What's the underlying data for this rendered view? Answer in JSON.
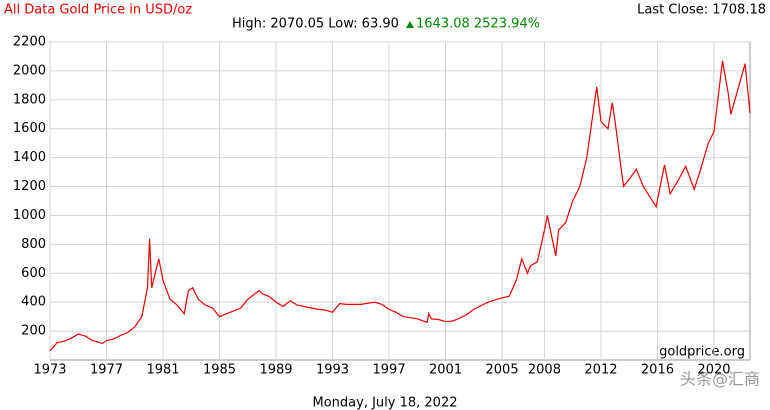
{
  "chart_data": {
    "type": "line",
    "title": "All Data Gold Price in USD/oz",
    "summary": "High: 2070.05 Low: 63.90",
    "change": "1643.08 2523.94%",
    "last_close": "Last Close: 1708.18",
    "date": "Monday, July 18, 2022",
    "source": "goldprice.org",
    "watermark": "头条@汇商",
    "x": [
      1973,
      1973.5,
      1974,
      1974.5,
      1975,
      1975.5,
      1976,
      1976.7,
      1977,
      1977.5,
      1978,
      1978.5,
      1979,
      1979.5,
      1979.9,
      1980.05,
      1980.2,
      1980.7,
      1981,
      1981.5,
      1982,
      1982.5,
      1982.8,
      1983.1,
      1983.5,
      1984,
      1984.5,
      1985,
      1985.5,
      1986,
      1986.5,
      1987,
      1987.8,
      1988,
      1988.5,
      1989,
      1989.5,
      1990,
      1990.5,
      1991,
      1991.5,
      1992,
      1992.5,
      1993,
      1993.5,
      1994,
      1995,
      1996,
      1996.5,
      1997,
      1997.5,
      1998,
      1999,
      1999.7,
      1999.8,
      2000,
      2000.5,
      2001,
      2001.5,
      2002,
      2002.5,
      2003,
      2004,
      2005,
      2005.5,
      2006,
      2006.4,
      2006.8,
      2007,
      2007.5,
      2008,
      2008.2,
      2008.8,
      2009,
      2009.5,
      2010,
      2010.5,
      2011,
      2011.7,
      2012,
      2012.5,
      2012.8,
      2013,
      2013.4,
      2013.6,
      2014,
      2014.5,
      2015,
      2015.9,
      2016.5,
      2016.9,
      2017.5,
      2018,
      2018.6,
      2019,
      2019.6,
      2020,
      2020.6,
      2021,
      2021.2,
      2022.2,
      2022.55
    ],
    "series": [
      {
        "name": "Gold",
        "color": "#ee0000",
        "values": [
          64,
          120,
          130,
          150,
          180,
          165,
          135,
          115,
          135,
          145,
          170,
          190,
          230,
          300,
          500,
          840,
          500,
          700,
          550,
          420,
          380,
          320,
          480,
          500,
          420,
          380,
          360,
          300,
          320,
          340,
          360,
          420,
          480,
          460,
          440,
          400,
          370,
          410,
          380,
          370,
          360,
          350,
          345,
          330,
          390,
          385,
          385,
          400,
          385,
          350,
          330,
          300,
          285,
          260,
          320,
          285,
          280,
          265,
          270,
          290,
          315,
          350,
          400,
          430,
          440,
          550,
          700,
          600,
          650,
          680,
          900,
          1000,
          720,
          900,
          950,
          1100,
          1200,
          1400,
          1890,
          1650,
          1600,
          1780,
          1650,
          1350,
          1200,
          1250,
          1320,
          1200,
          1060,
          1350,
          1150,
          1250,
          1340,
          1180,
          1300,
          1500,
          1580,
          2070,
          1850,
          1700,
          2050,
          1708
        ]
      }
    ],
    "xlim": [
      1973,
      2022.55
    ],
    "xticks": [
      1973,
      1977,
      1981,
      1985,
      1989,
      1993,
      1997,
      2001,
      2005,
      2008,
      2012,
      2016,
      2020
    ],
    "ylim": [
      0,
      2200
    ],
    "yticks": [
      200,
      400,
      600,
      800,
      1000,
      1200,
      1400,
      1600,
      1800,
      2000,
      2200
    ],
    "grid": true
  }
}
